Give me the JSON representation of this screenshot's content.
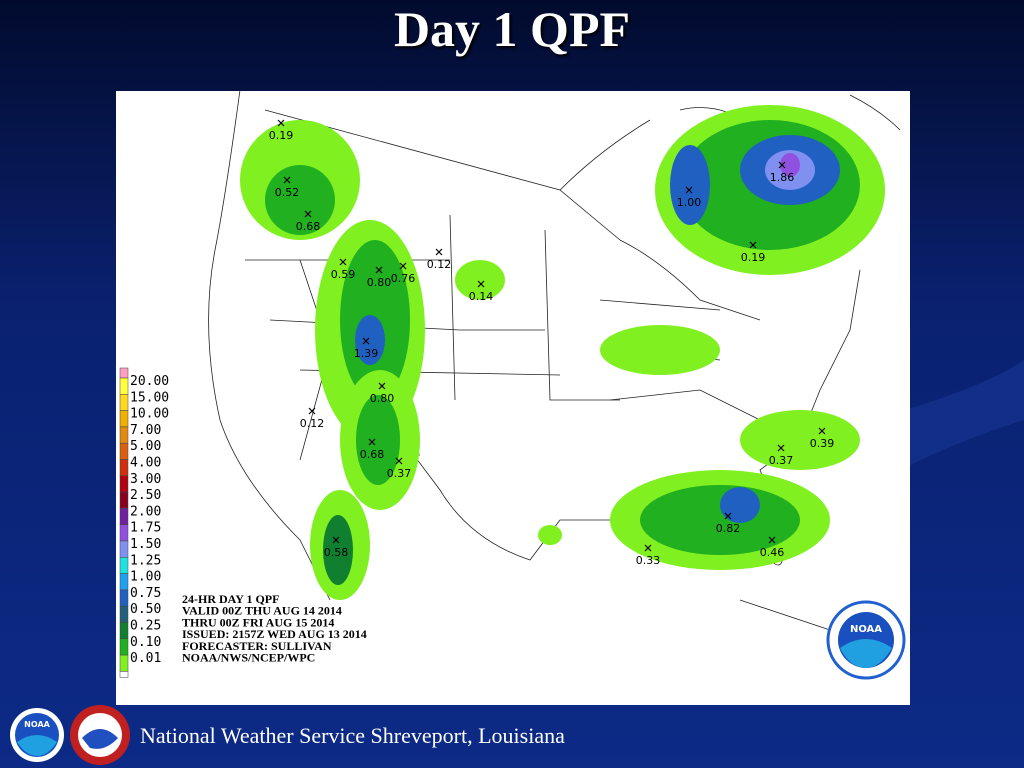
{
  "title": "Day 1 QPF",
  "map": {
    "points": [
      "0.19",
      "0.52",
      "0.68",
      "0.59",
      "0.80",
      "0.76",
      "0.12",
      "0.14",
      "1.39",
      "0.80",
      "0.12",
      "0.68",
      "0.37",
      "0.58",
      "1.00",
      "1.86",
      "0.19",
      "0.39",
      "0.37",
      "0.82",
      "0.46",
      "0.33"
    ],
    "legend": [
      {
        "label": "20.00",
        "color": "#ffff40"
      },
      {
        "label": "15.00",
        "color": "#ffd820"
      },
      {
        "label": "10.00",
        "color": "#f0b000"
      },
      {
        "label": "7.00",
        "color": "#e08a10"
      },
      {
        "label": "5.00",
        "color": "#d86010"
      },
      {
        "label": "4.00",
        "color": "#d03010"
      },
      {
        "label": "3.00",
        "color": "#b00010"
      },
      {
        "label": "2.50",
        "color": "#880020"
      },
      {
        "label": "2.00",
        "color": "#7020a0"
      },
      {
        "label": "1.75",
        "color": "#9050e0"
      },
      {
        "label": "1.50",
        "color": "#8090f0"
      },
      {
        "label": "1.25",
        "color": "#20e0e0"
      },
      {
        "label": "1.00",
        "color": "#20a0f0"
      },
      {
        "label": "0.75",
        "color": "#2060c0"
      },
      {
        "label": "0.50",
        "color": "#20607a"
      },
      {
        "label": "0.25",
        "color": "#108030"
      },
      {
        "label": "0.10",
        "color": "#20b020"
      },
      {
        "label": "0.01",
        "color": "#80f020"
      }
    ],
    "legend_top_color": "#ffa0c0",
    "info": [
      "24-HR DAY 1 QPF",
      "VALID 00Z THU AUG 14 2014",
      "THRU 00Z FRI AUG 15 2014",
      "ISSUED: 2157Z WED AUG 13 2014",
      "FORECASTER: SULLIVAN",
      "NOAA/NWS/NCEP/WPC"
    ],
    "logo": "NOAA"
  },
  "footer": {
    "text": "National Weather Service Shreveport, Louisiana",
    "logo": "NOAA"
  }
}
